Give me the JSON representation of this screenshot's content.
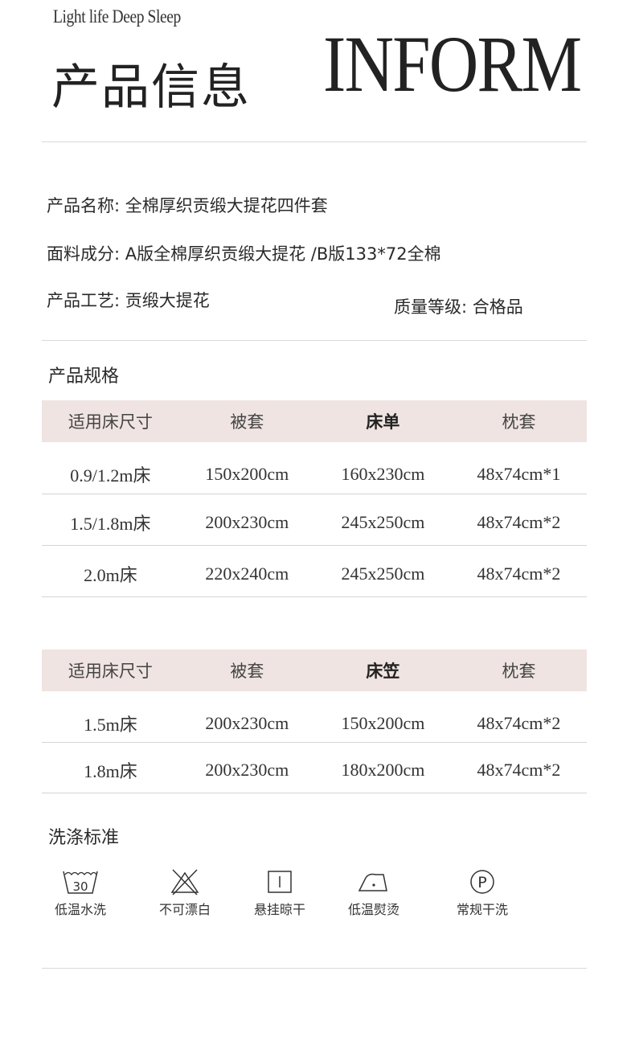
{
  "header": {
    "tagline": "Light life Deep Sleep",
    "title_cn": "产品信息",
    "title_en": "INFORM"
  },
  "info": {
    "name_label": "产品名称:",
    "name_value": "全棉厚织贡缎大提花四件套",
    "fabric_label": "面料成分:",
    "fabric_value": "A版全棉厚织贡缎大提花 /B版133*72全棉",
    "craft_label": "产品工艺:",
    "craft_value": "贡缎大提花",
    "grade_label": "质量等级:",
    "grade_value": "合格品"
  },
  "spec": {
    "title": "产品规格",
    "table1": {
      "headers": [
        "适用床尺寸",
        "被套",
        "床单",
        "枕套"
      ],
      "rows": [
        [
          "0.9/1.2m床",
          "150x200cm",
          "160x230cm",
          "48x74cm*1"
        ],
        [
          "1.5/1.8m床",
          "200x230cm",
          "245x250cm",
          "48x74cm*2"
        ],
        [
          "2.0m床",
          "220x240cm",
          "245x250cm",
          "48x74cm*2"
        ]
      ]
    },
    "table2": {
      "headers": [
        "适用床尺寸",
        "被套",
        "床笠",
        "枕套"
      ],
      "rows": [
        [
          "1.5m床",
          "200x230cm",
          "150x200cm",
          "48x74cm*2"
        ],
        [
          "1.8m床",
          "200x230cm",
          "180x200cm",
          "48x74cm*2"
        ]
      ]
    }
  },
  "care": {
    "title": "洗涤标准",
    "items": [
      {
        "icon": "wash-30-icon",
        "label": "低温水洗",
        "tub_text": "30"
      },
      {
        "icon": "no-bleach-icon",
        "label": "不可漂白"
      },
      {
        "icon": "hang-dry-icon",
        "label": "悬挂晾干"
      },
      {
        "icon": "low-iron-icon",
        "label": "低温熨烫"
      },
      {
        "icon": "dry-clean-icon",
        "label": "常规干洗",
        "circle_text": "P"
      }
    ]
  },
  "colors": {
    "table_header_bg": "#efe4e1",
    "text": "#2a2a2a",
    "divider": "#d9d9d9"
  }
}
